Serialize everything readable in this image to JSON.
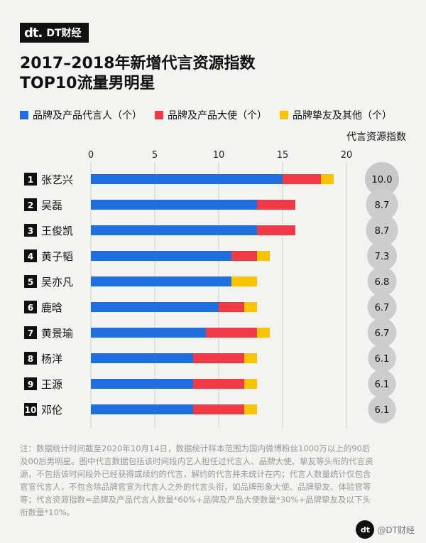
{
  "header": {
    "logo_mark": "dt.",
    "logo_text": "DT财经",
    "title_line1": "2017–2018年新增代言资源指数",
    "title_line2": "TOP10流量男明星"
  },
  "legend": {
    "items": [
      {
        "label": "品牌及产品代言人（个）",
        "color": "#1f6fe0"
      },
      {
        "label": "品牌及产品大使（个）",
        "color": "#ee3b45"
      },
      {
        "label": "品牌挚友及其他（个）",
        "color": "#f8c400"
      }
    ],
    "index_title": "代言资源指数"
  },
  "chart_data": {
    "type": "bar",
    "orientation": "horizontal",
    "stacked": true,
    "categories": [
      "张艺兴",
      "吴磊",
      "王俊凯",
      "黄子韬",
      "吴亦凡",
      "鹿晗",
      "黄景瑜",
      "杨洋",
      "王源",
      "邓伦"
    ],
    "ranks": [
      "1",
      "2",
      "3",
      "4",
      "5",
      "6",
      "7",
      "8",
      "9",
      "10"
    ],
    "series": [
      {
        "name": "品牌及产品代言人（个）",
        "color": "#1f6fe0",
        "values": [
          15,
          13,
          13,
          11,
          11,
          10,
          9,
          8,
          8,
          8
        ]
      },
      {
        "name": "品牌及产品大使（个）",
        "color": "#ee3b45",
        "values": [
          3,
          3,
          3,
          2,
          0,
          2,
          4,
          4,
          4,
          4
        ]
      },
      {
        "name": "品牌挚友及其他（个）",
        "color": "#f8c400",
        "values": [
          1,
          0,
          0,
          1,
          2,
          1,
          1,
          1,
          1,
          1
        ]
      }
    ],
    "index_values": [
      "10.0",
      "8.7",
      "8.7",
      "7.3",
      "6.8",
      "6.7",
      "6.7",
      "6.1",
      "6.1",
      "6.1"
    ],
    "index_numeric": [
      10.0,
      8.7,
      8.7,
      7.3,
      6.8,
      6.7,
      6.7,
      6.1,
      6.1,
      6.1
    ],
    "xticks": [
      "0",
      "5",
      "10",
      "15",
      "20"
    ],
    "xlim": [
      0,
      20
    ],
    "grid": true
  },
  "note": "注：数据统计时间截至2020年10月14日，数据统计样本范围为国内微博粉丝1000万以上的90后及00后男明星。图中代言数据包括该时间段内艺人担任过代言人、品牌大使、挚友等头衔的代言资源，不包括该时间段外已经获得或续约的代言，解约的代言并未统计在内；代言人数量统计仅包含官宣代言人，不包含除品牌官宣为代言人之外的代言头衔，如品牌形象大使、品牌挚友、体验官等等；代言资源指数=品牌及产品代言人数量*60%+品牌及产品大使数量*30%+品牌挚友及以下头衔数量*10%。",
  "watermark": "@DT财经"
}
